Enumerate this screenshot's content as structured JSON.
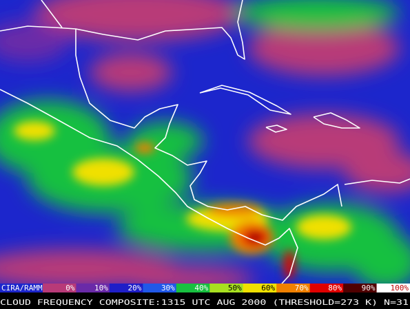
{
  "credit": "CIRA/RAMM",
  "caption": "CLOUD FREQUENCY COMPOSITE:1315 UTC AUG 2000 (THRESHOLD=273 K) N=31",
  "scale": [
    {
      "label": "0%",
      "color": "#b83a78"
    },
    {
      "label": "10%",
      "color": "#6a2aa8"
    },
    {
      "label": "20%",
      "color": "#1e1ec8"
    },
    {
      "label": "30%",
      "color": "#2058e8"
    },
    {
      "label": "40%",
      "color": "#18c040"
    },
    {
      "label": "50%",
      "color": "#a8e020"
    },
    {
      "label": "60%",
      "color": "#f0e000"
    },
    {
      "label": "70%",
      "color": "#f08000"
    },
    {
      "label": "80%",
      "color": "#e00000"
    },
    {
      "label": "90%",
      "color": "#500000"
    },
    {
      "label": "100%",
      "color": "#ffffff"
    }
  ]
}
